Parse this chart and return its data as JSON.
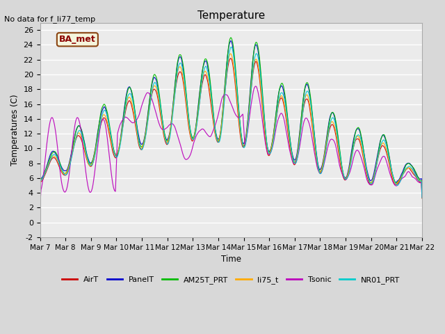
{
  "title": "Temperature",
  "ylabel": "Temperatures (C)",
  "xlabel": "Time",
  "no_data_text": "No data for f_li77_temp",
  "ba_met_label": "BA_met",
  "ylim": [
    -2,
    27
  ],
  "yticks": [
    -2,
    0,
    2,
    4,
    6,
    8,
    10,
    12,
    14,
    16,
    18,
    20,
    22,
    24,
    26
  ],
  "fig_bg_color": "#d8d8d8",
  "plot_bg_color": "#ebebeb",
  "grid_color": "#ffffff",
  "series": [
    {
      "name": "AirT",
      "color": "#cc0000"
    },
    {
      "name": "PanelT",
      "color": "#0000cc"
    },
    {
      "name": "AM25T_PRT",
      "color": "#00bb00"
    },
    {
      "name": "li75_t",
      "color": "#ffaa00"
    },
    {
      "name": "Tsonic",
      "color": "#bb00bb"
    },
    {
      "name": "NR01_PRT",
      "color": "#00cccc"
    }
  ],
  "xtick_labels": [
    "Mar 7",
    "Mar 8",
    "Mar 9",
    "Mar 10",
    "Mar 11",
    "Mar 12",
    "Mar 13",
    "Mar 14",
    "Mar 15",
    "Mar 16",
    "Mar 17",
    "Mar 18",
    "Mar 19",
    "Mar 20",
    "Mar 21",
    "Mar 22"
  ],
  "xtick_positions": [
    0,
    1,
    2,
    3,
    4,
    5,
    6,
    7,
    8,
    9,
    10,
    11,
    12,
    13,
    14,
    15
  ],
  "x_start": 0,
  "x_end": 15,
  "n_points": 1500
}
